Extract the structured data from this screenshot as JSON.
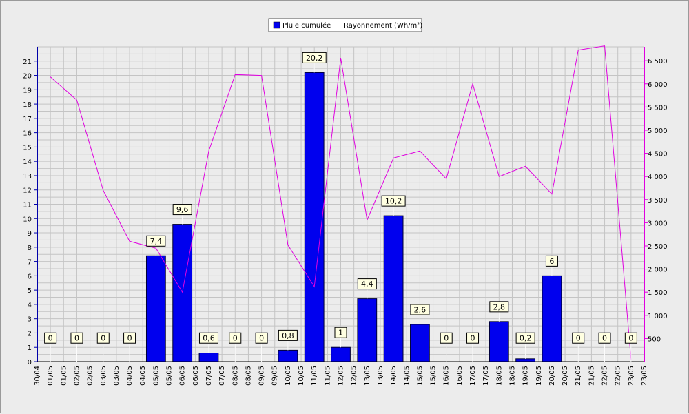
{
  "chart_data": {
    "type": "bar",
    "categories": [
      "01/05",
      "02/05",
      "03/05",
      "04/05",
      "05/05",
      "06/05",
      "07/05",
      "08/05",
      "09/05",
      "10/05",
      "11/05",
      "12/05",
      "13/05",
      "14/05",
      "15/05",
      "16/05",
      "17/05",
      "18/05",
      "19/05",
      "20/05",
      "21/05",
      "22/05",
      "23/05"
    ],
    "x_tick_labels": [
      "30/04",
      "01/05",
      "01/05",
      "02/05",
      "02/05",
      "03/05",
      "03/05",
      "04/05",
      "04/05",
      "05/05",
      "05/05",
      "06/05",
      "06/05",
      "07/05",
      "07/05",
      "08/05",
      "08/05",
      "09/05",
      "09/05",
      "10/05",
      "10/05",
      "11/05",
      "11/05",
      "12/05",
      "12/05",
      "13/05",
      "13/05",
      "14/05",
      "14/05",
      "15/05",
      "15/05",
      "16/05",
      "16/05",
      "17/05",
      "17/05",
      "18/05",
      "18/05",
      "19/05",
      "19/05",
      "20/05",
      "20/05",
      "21/05",
      "21/05",
      "22/05",
      "22/05",
      "23/05",
      "23/05"
    ],
    "series": [
      {
        "name": "Pluie cumulée",
        "kind": "bar",
        "axis": "left",
        "color": "#0000ee",
        "values": [
          0,
          0,
          0,
          0,
          7.4,
          9.6,
          0.6,
          0,
          0,
          0.8,
          20.2,
          1,
          4.4,
          10.2,
          2.6,
          0,
          0,
          2.8,
          0.2,
          6,
          0,
          0,
          0
        ],
        "labels": [
          "0",
          "0",
          "0",
          "0",
          "7,4",
          "9,6",
          "0,6",
          "0",
          "0",
          "0,8",
          "20,2",
          "1",
          "4,4",
          "10,2",
          "2,6",
          "0",
          "0",
          "2,8",
          "0,2",
          "6",
          "0",
          "0",
          "0"
        ]
      },
      {
        "name": "Rayonnement (Wh/m²)",
        "kind": "line",
        "axis": "right",
        "color": "#e000e0",
        "values": [
          6150,
          5650,
          3700,
          2600,
          2450,
          1500,
          4550,
          6200,
          6180,
          2520,
          1620,
          6560,
          3060,
          4400,
          4550,
          3950,
          6000,
          4000,
          4220,
          3620,
          6730,
          6820,
          40
        ]
      }
    ],
    "y_left": {
      "min": 0,
      "max": 22,
      "ticks": [
        "0",
        "1",
        "2",
        "3",
        "4",
        "5",
        "6",
        "7",
        "8",
        "9",
        "10",
        "11",
        "12",
        "13",
        "14",
        "15",
        "16",
        "17",
        "18",
        "19",
        "20",
        "21"
      ]
    },
    "y_right": {
      "min": 0,
      "max": 6800,
      "ticks": [
        "500",
        "1 000",
        "1 500",
        "2 000",
        "2 500",
        "3 000",
        "3 500",
        "4 000",
        "4 500",
        "5 000",
        "5 500",
        "6 000",
        "6 500"
      ]
    },
    "grid": true,
    "legend_position": "top-center"
  },
  "colors": {
    "bar": "#0000ee",
    "line": "#e000e0",
    "grid": "#c4c4c4",
    "plot_bg": "#ececec",
    "label_bg": "#ffffe1"
  }
}
